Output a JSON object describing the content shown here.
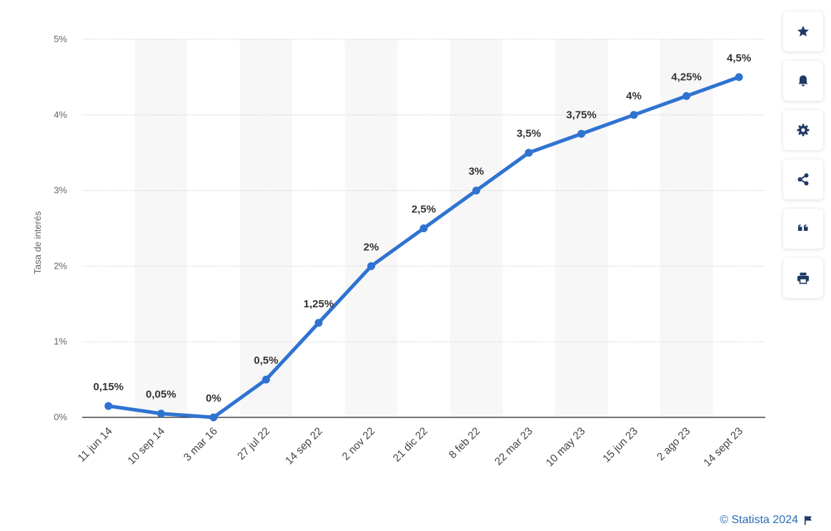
{
  "chart_data": {
    "type": "line",
    "ylabel": "Tasa de interés",
    "ylim": [
      0,
      5
    ],
    "yticks": [
      "0%",
      "1%",
      "2%",
      "3%",
      "4%",
      "5%"
    ],
    "grid": true,
    "categories": [
      "11 jun 14",
      "10 sep 14",
      "3 mar 16",
      "27 jul 22",
      "14 sep 22",
      "2 nov 22",
      "21 dic 22",
      "8 feb 22",
      "22 mar 23",
      "10 may 23",
      "15 jun 23",
      "2 ago 23",
      "14 sept 23"
    ],
    "series": [
      {
        "values": [
          0.15,
          0.05,
          0,
          0.5,
          1.25,
          2,
          2.5,
          3,
          3.5,
          3.75,
          4,
          4.25,
          4.5
        ],
        "labels": [
          "0,15%",
          "0,05%",
          "0%",
          "0,5%",
          "1,25%",
          "2%",
          "2,5%",
          "3%",
          "3,5%",
          "3,75%",
          "4%",
          "4,25%",
          "4,5%"
        ],
        "color": "#2f73d1"
      }
    ]
  },
  "sidebar": {
    "buttons": [
      {
        "icon": "star-icon",
        "name": "favorite-button"
      },
      {
        "icon": "bell-icon",
        "name": "notification-button"
      },
      {
        "icon": "gear-icon",
        "name": "settings-button"
      },
      {
        "icon": "share-icon",
        "name": "share-button"
      },
      {
        "icon": "quote-icon",
        "name": "cite-button"
      },
      {
        "icon": "print-icon",
        "name": "print-button"
      }
    ]
  },
  "footer": {
    "copyright": "© Statista 2024",
    "link_color": "#2a6bb5"
  }
}
